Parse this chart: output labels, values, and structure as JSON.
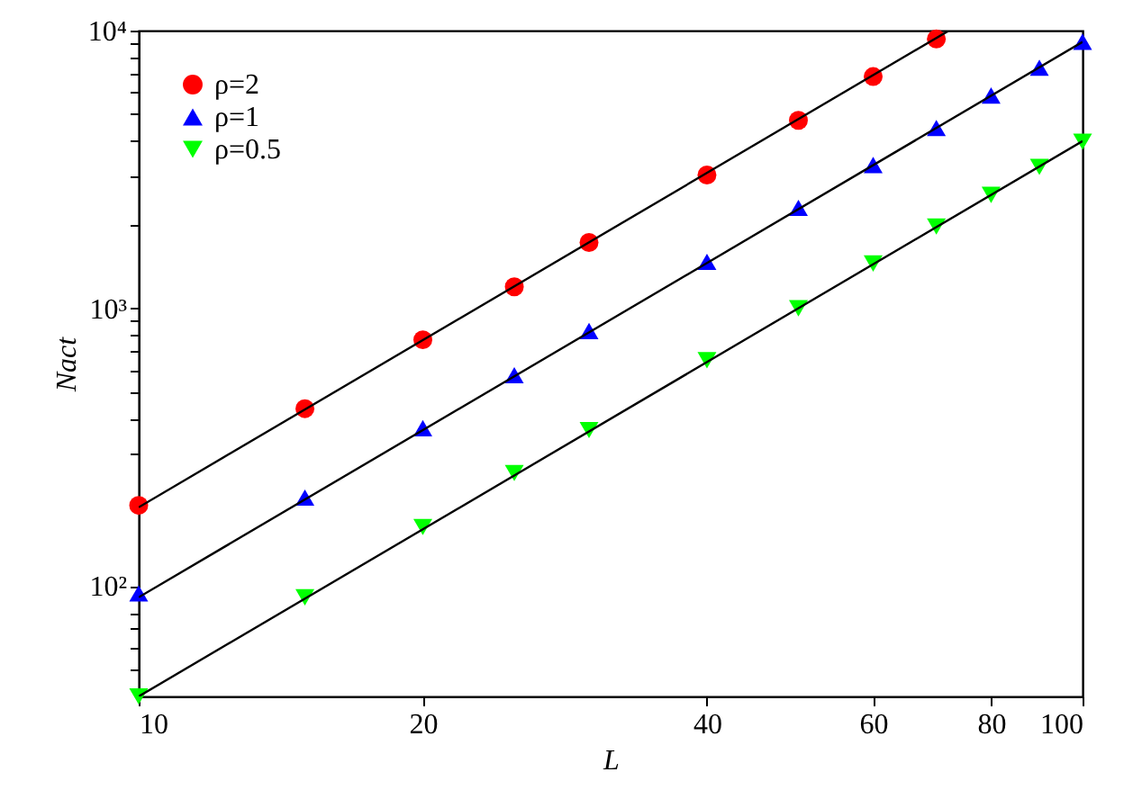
{
  "chart_data": {
    "type": "scatter",
    "xlabel": "L",
    "ylabel": "Nact",
    "log": "xy",
    "grid": false,
    "legend": "top left",
    "xlim": [
      10,
      100
    ],
    "xticks": [
      10,
      20,
      40,
      60,
      80,
      100
    ],
    "ylim": [
      40,
      10000
    ],
    "yticks": [
      {
        "value": 50,
        "label": null
      },
      {
        "value": 60,
        "label": null
      },
      {
        "value": 70,
        "label": null
      },
      {
        "value": 80,
        "label": null
      },
      {
        "value": 90,
        "label": null
      },
      {
        "value": 100,
        "label": "10²"
      },
      {
        "value": 200,
        "label": null
      },
      {
        "value": 300,
        "label": null
      },
      {
        "value": 400,
        "label": null
      },
      {
        "value": 500,
        "label": null
      },
      {
        "value": 600,
        "label": null
      },
      {
        "value": 700,
        "label": null
      },
      {
        "value": 800,
        "label": null
      },
      {
        "value": 900,
        "label": null
      },
      {
        "value": 1000,
        "label": "10³"
      },
      {
        "value": 2000,
        "label": null
      },
      {
        "value": 3000,
        "label": null
      },
      {
        "value": 4000,
        "label": null
      },
      {
        "value": 5000,
        "label": null
      },
      {
        "value": 6000,
        "label": null
      },
      {
        "value": 7000,
        "label": null
      },
      {
        "value": 8000,
        "label": null
      },
      {
        "value": 9000,
        "label": null
      },
      {
        "value": 10000,
        "label": "10⁴"
      }
    ],
    "series": [
      {
        "name": "ρ=2",
        "marker": "circle",
        "color": "#ff0000",
        "x": [
          10,
          15,
          20,
          25,
          30,
          40,
          50,
          60,
          70
        ],
        "values": [
          195,
          435,
          770,
          1195,
          1725,
          3020,
          4750,
          6830,
          9330
        ]
      },
      {
        "name": "ρ=1",
        "marker": "triangle",
        "color": "#0000ff",
        "x": [
          10,
          15,
          20,
          25,
          30,
          40,
          50,
          60,
          70,
          80,
          90,
          100
        ],
        "values": [
          94,
          208,
          370,
          574,
          828,
          1470,
          2300,
          3280,
          4460,
          5840,
          7350,
          9120
        ]
      },
      {
        "name": "ρ=0.5",
        "marker": "triangle-down",
        "color": "#00ff00",
        "x": [
          10,
          15,
          20,
          25,
          30,
          40,
          50,
          60,
          70,
          80,
          90,
          100
        ],
        "values": [
          40,
          91,
          163,
          255,
          364,
          650,
          1000,
          1450,
          1970,
          2560,
          3230,
          3980
        ]
      },
      {
        "type": "line",
        "color": "#000000",
        "x": [
          10,
          72
        ],
        "values": [
          192,
          9950
        ]
      },
      {
        "type": "line",
        "color": "#000000",
        "x": [
          10,
          100
        ],
        "values": [
          91,
          9100
        ]
      },
      {
        "type": "line",
        "color": "#000000",
        "x": [
          10,
          100
        ],
        "values": [
          40,
          4000
        ]
      }
    ]
  }
}
